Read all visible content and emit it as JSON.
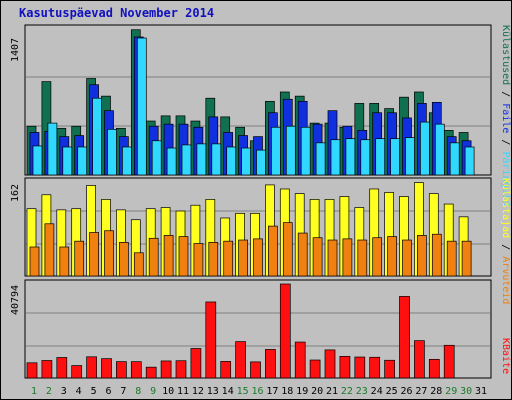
{
  "title": "Kasutuspäevad November 2014",
  "colors": {
    "visits": "#107050",
    "files": "#1030e0",
    "pages": "#30d8ff",
    "hits": "#ffff20",
    "hosts": "#f08010",
    "kbytes": "#ff1010",
    "weekend_day_label": "#1b7a2b",
    "weekday_label": "#000000"
  },
  "chart_data": [
    {
      "type": "bar",
      "panel": "top",
      "ytick": "1407",
      "categories": [
        "1",
        "2",
        "3",
        "4",
        "5",
        "6",
        "7",
        "8",
        "9",
        "10",
        "11",
        "12",
        "13",
        "14",
        "15",
        "16",
        "17",
        "18",
        "19",
        "20",
        "21",
        "22",
        "23",
        "24",
        "25",
        "26",
        "27",
        "28",
        "29",
        "30",
        "31"
      ],
      "weekend_days": [
        "1",
        "2",
        "8",
        "9",
        "15",
        "16",
        "22",
        "23",
        "29",
        "30"
      ],
      "legend": [
        "Külastused",
        "Faile",
        "Päringuid"
      ],
      "series": [
        {
          "name": "Külastused",
          "values": [
            470,
            900,
            450,
            470,
            930,
            760,
            450,
            1400,
            520,
            570,
            570,
            520,
            740,
            560,
            460,
            330,
            710,
            800,
            760,
            500,
            500,
            460,
            690,
            690,
            640,
            750,
            800,
            600,
            430,
            410,
            0
          ]
        },
        {
          "name": "Faile",
          "values": [
            410,
            420,
            370,
            380,
            870,
            620,
            370,
            1330,
            470,
            490,
            490,
            460,
            560,
            410,
            380,
            370,
            600,
            730,
            710,
            490,
            620,
            470,
            430,
            600,
            600,
            550,
            690,
            700,
            370,
            330,
            0
          ]
        },
        {
          "name": "Päringuid",
          "values": [
            280,
            500,
            270,
            270,
            740,
            440,
            270,
            1320,
            330,
            260,
            290,
            300,
            300,
            270,
            260,
            240,
            460,
            470,
            460,
            310,
            340,
            350,
            340,
            350,
            350,
            360,
            510,
            490,
            310,
            270,
            0
          ]
        }
      ],
      "ylim": [
        0,
        1407
      ]
    },
    {
      "type": "bar",
      "panel": "middle",
      "ytick": "162",
      "categories": [
        "1",
        "2",
        "3",
        "4",
        "5",
        "6",
        "7",
        "8",
        "9",
        "10",
        "11",
        "12",
        "13",
        "14",
        "15",
        "16",
        "17",
        "18",
        "19",
        "20",
        "21",
        "22",
        "23",
        "24",
        "25",
        "26",
        "27",
        "28",
        "29",
        "30",
        "31"
      ],
      "legend": [
        "Külastajad",
        "Arvuteid"
      ],
      "series": [
        {
          "name": "Külastajad",
          "values": [
            116,
            140,
            114,
            116,
            156,
            132,
            114,
            97,
            116,
            118,
            112,
            122,
            132,
            100,
            108,
            108,
            157,
            150,
            142,
            132,
            132,
            137,
            118,
            150,
            144,
            137,
            161,
            142,
            124,
            102,
            0
          ]
        },
        {
          "name": "Arvuteid",
          "values": [
            50,
            90,
            50,
            60,
            75,
            78,
            58,
            40,
            65,
            70,
            68,
            56,
            58,
            60,
            62,
            64,
            86,
            92,
            74,
            66,
            62,
            64,
            62,
            66,
            68,
            62,
            70,
            72,
            60,
            60,
            0
          ]
        }
      ],
      "ylim": [
        0,
        162
      ]
    },
    {
      "type": "bar",
      "panel": "bottom",
      "ytick": "40794",
      "categories": [
        "1",
        "2",
        "3",
        "4",
        "5",
        "6",
        "7",
        "8",
        "9",
        "10",
        "11",
        "12",
        "13",
        "14",
        "15",
        "16",
        "17",
        "18",
        "19",
        "20",
        "21",
        "22",
        "23",
        "24",
        "25",
        "26",
        "27",
        "28",
        "29",
        "30",
        "31"
      ],
      "legend": [
        "KBaite"
      ],
      "series": [
        {
          "name": "KBaite",
          "values": [
            6600,
            7600,
            8900,
            5400,
            9200,
            8400,
            7100,
            7100,
            4700,
            7400,
            7500,
            12800,
            33000,
            7200,
            15800,
            7000,
            12400,
            40794,
            15600,
            7800,
            12200,
            9400,
            9100,
            9000,
            7700,
            35400,
            16200,
            8100,
            14200,
            0,
            0
          ]
        }
      ],
      "ylim": [
        0,
        40794
      ]
    }
  ]
}
